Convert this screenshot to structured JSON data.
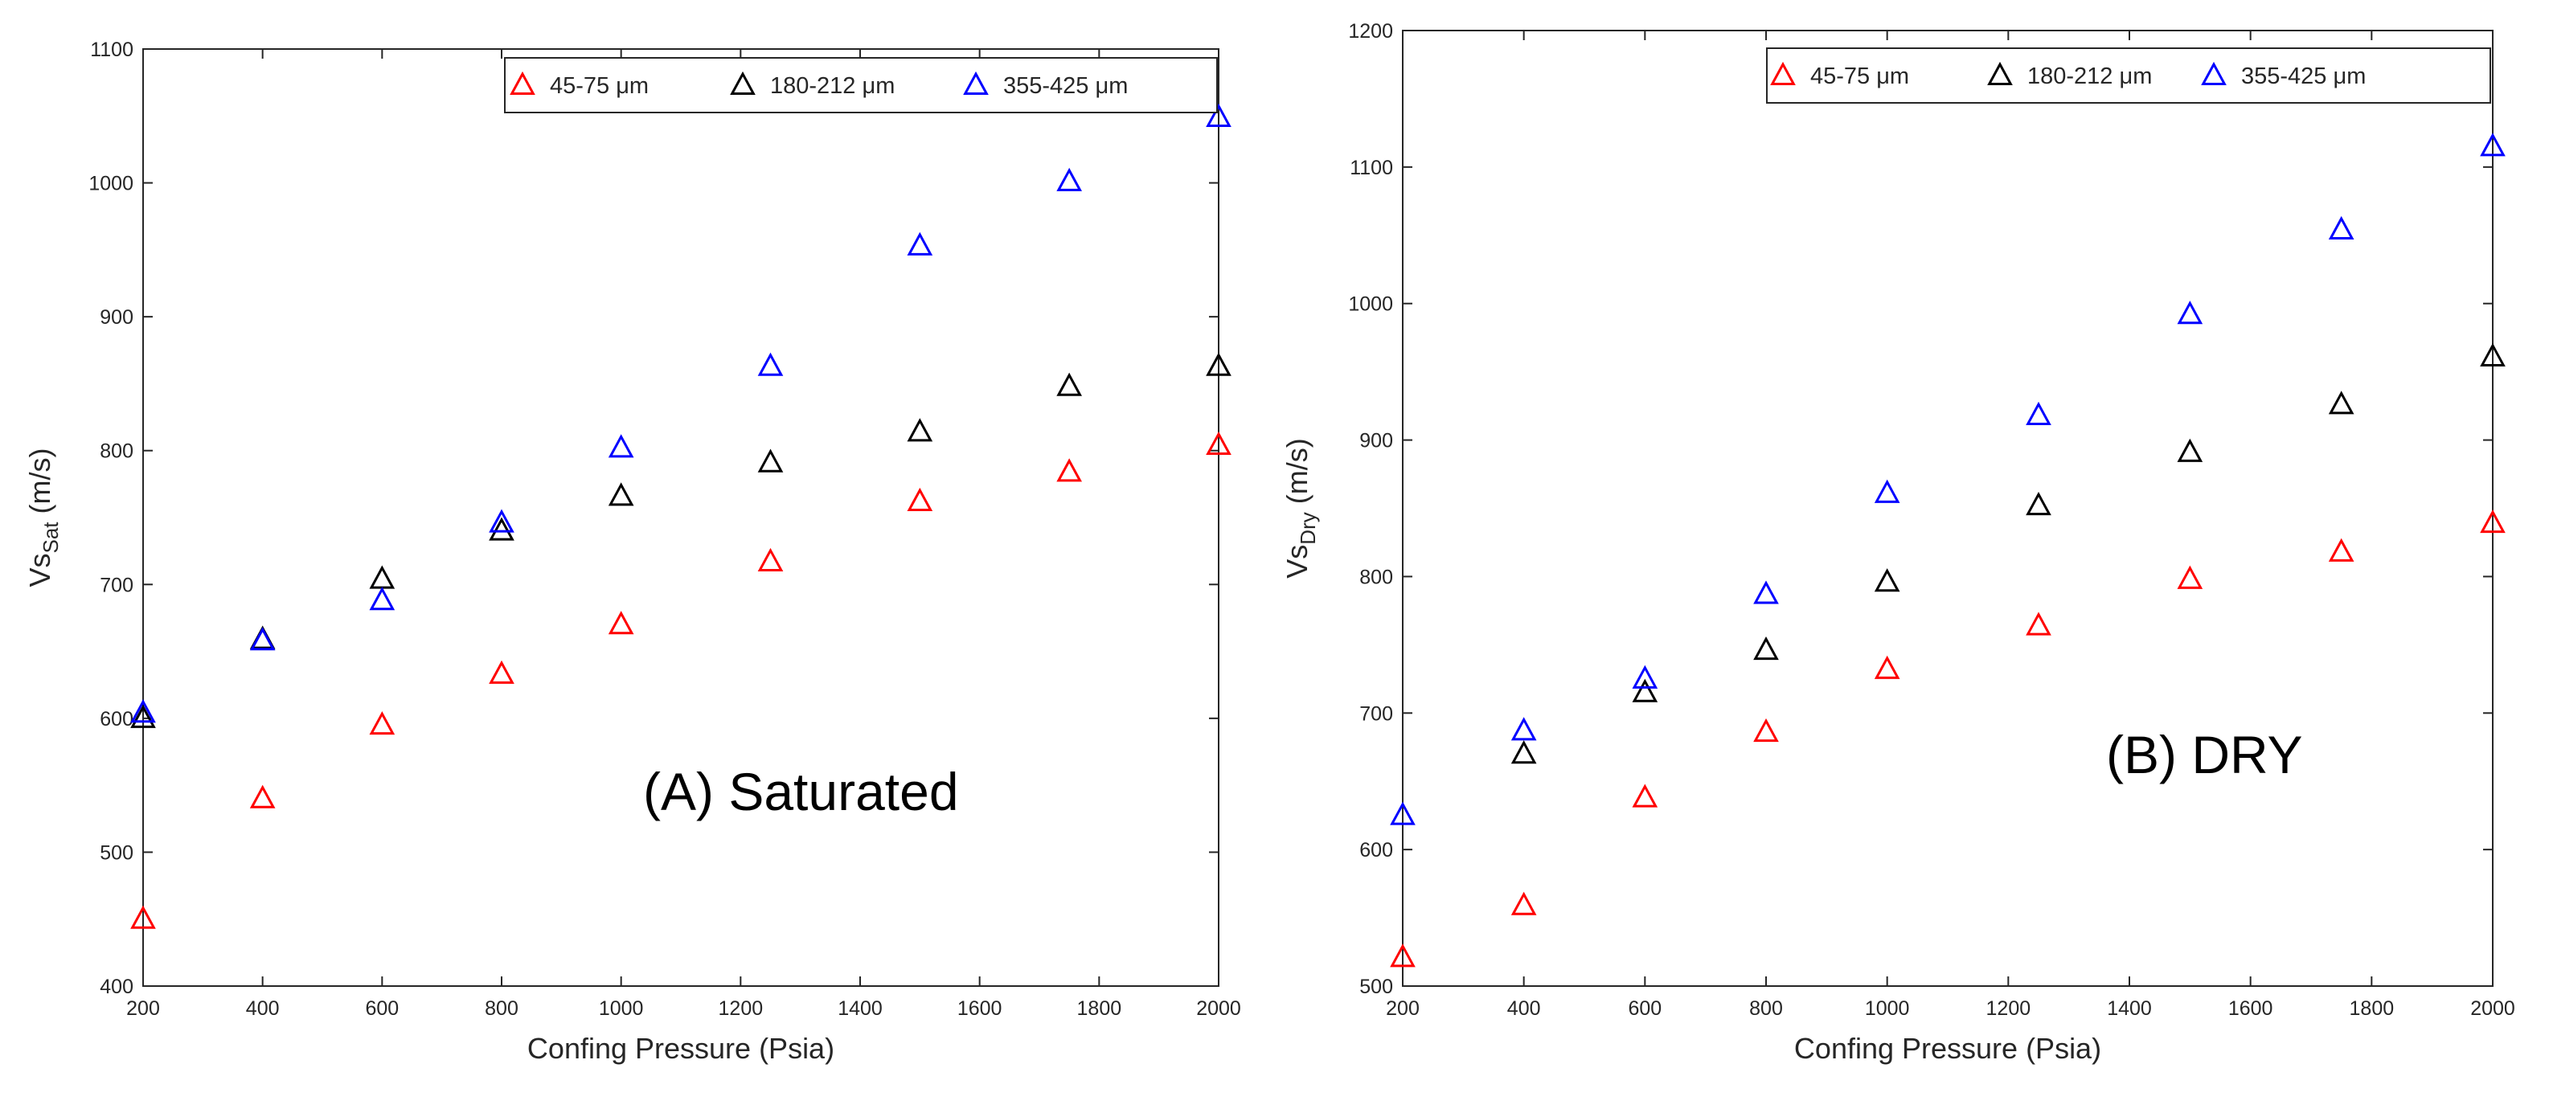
{
  "chart_data": [
    {
      "type": "scatter",
      "panel": "A",
      "annotation": "(A)   Saturated",
      "xlabel": "Confing Pressure (Psia)",
      "ylabel_main": "Vs",
      "ylabel_sub": "Sat",
      "ylabel_unit": " (m/s)",
      "xlim": [
        200,
        2000
      ],
      "ylim": [
        400,
        1100
      ],
      "xticks": [
        200,
        400,
        600,
        800,
        1000,
        1200,
        1400,
        1600,
        1800,
        2000
      ],
      "yticks": [
        400,
        500,
        600,
        700,
        800,
        900,
        1000,
        1100
      ],
      "grid": true,
      "legend_position": "top-right",
      "marker": "open-triangle",
      "x": [
        200,
        400,
        600,
        800,
        1000,
        1250,
        1500,
        1750,
        2000
      ],
      "series": [
        {
          "name": "45-75 μm",
          "color": "#ff0000",
          "values": [
            450,
            540,
            595,
            633,
            670,
            717,
            762,
            784,
            804
          ]
        },
        {
          "name": "180-212 μm",
          "color": "#000000",
          "values": [
            600,
            659,
            704,
            740,
            766,
            791,
            814,
            848,
            863
          ]
        },
        {
          "name": "355-425 μm",
          "color": "#0000ff",
          "values": [
            604,
            658,
            688,
            746,
            802,
            863,
            953,
            1001,
            1049
          ]
        }
      ]
    },
    {
      "type": "scatter",
      "panel": "B",
      "annotation": "(B) DRY",
      "xlabel": "Confing Pressure (Psia)",
      "ylabel_main": "Vs",
      "ylabel_sub": "Dry",
      "ylabel_unit": " (m/s)",
      "xlim": [
        200,
        2000
      ],
      "ylim": [
        500,
        1200
      ],
      "xticks": [
        200,
        400,
        600,
        800,
        1000,
        1200,
        1400,
        1600,
        1800,
        2000
      ],
      "yticks": [
        500,
        600,
        700,
        800,
        900,
        1000,
        1100,
        1200
      ],
      "grid": true,
      "legend_position": "top-right",
      "marker": "open-triangle",
      "x": [
        200,
        400,
        600,
        800,
        1000,
        1250,
        1500,
        1750,
        2000
      ],
      "series": [
        {
          "name": "45-75 μm",
          "color": "#ff0000",
          "values": [
            521,
            559,
            638,
            686,
            732,
            764,
            798,
            818,
            839
          ]
        },
        {
          "name": "180-212 μm",
          "color": "#000000",
          "values": [
            null,
            670,
            715,
            746,
            796,
            852,
            891,
            926,
            961
          ]
        },
        {
          "name": "355-425 μm",
          "color": "#0000ff",
          "values": [
            625,
            687,
            725,
            787,
            861,
            918,
            992,
            1054,
            1115
          ]
        }
      ]
    }
  ]
}
